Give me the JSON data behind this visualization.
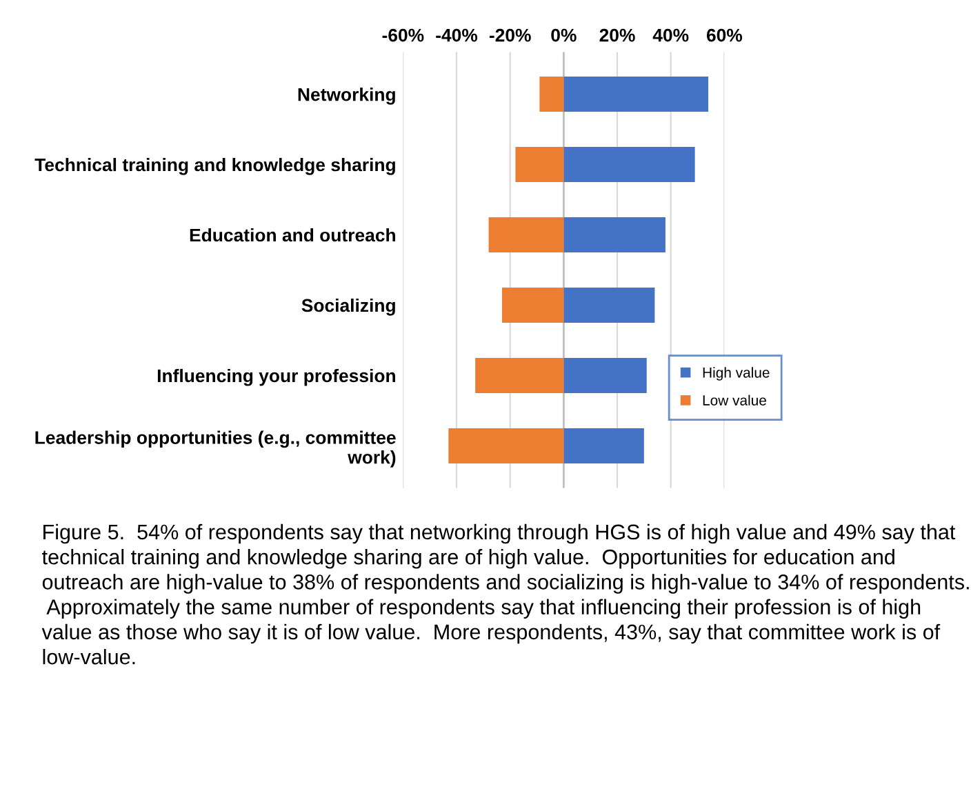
{
  "chart_data": {
    "type": "bar",
    "orientation": "horizontal",
    "stacked": true,
    "categories": [
      "Networking",
      "Technical training and knowledge sharing",
      "Education and outreach",
      "Socializing",
      "Influencing your profession",
      "Leadership opportunities (e.g., committee work)"
    ],
    "series": [
      {
        "name": "High value",
        "color": "#4472c4",
        "values": [
          54,
          49,
          38,
          34,
          31,
          30
        ]
      },
      {
        "name": "Low value",
        "color": "#ed7d31",
        "values": [
          -9,
          -18,
          -28,
          -23,
          -33,
          -43
        ]
      }
    ],
    "xlim": [
      -60,
      60
    ],
    "xticks": [
      {
        "value": -60,
        "label": "-60%"
      },
      {
        "value": -40,
        "label": "-40%"
      },
      {
        "value": -20,
        "label": "-20%"
      },
      {
        "value": 0,
        "label": "0%"
      },
      {
        "value": 20,
        "label": "20%"
      },
      {
        "value": 40,
        "label": "40%"
      },
      {
        "value": 60,
        "label": "60%"
      }
    ],
    "grid": "x",
    "legend": "lower right",
    "annotations": [
      "Figure 5.  54% of respondents say that networking through HGS is of high value and 49% say that technical training and knowledge sharing are of high value.  Opportunities for education and outreach are high-value to 38% of respondents and socializing is high-value to 34% of respondents.  Approximately the same number of respondents say that influencing their profession is of high value as those who say it is of low value.  More respondents, 43%, say that committee work is of low-value."
    ]
  }
}
